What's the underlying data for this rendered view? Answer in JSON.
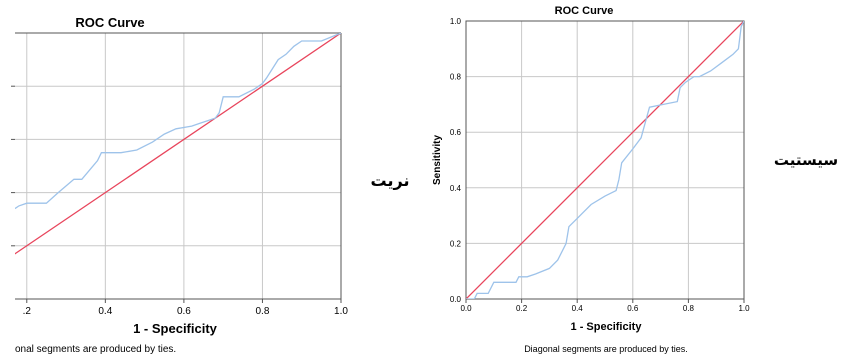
{
  "side_labels": {
    "left": "نریت",
    "right": "سیستیت"
  },
  "chart_data": [
    {
      "type": "line",
      "title": "ROC Curve",
      "xlabel": "1 - Specificity",
      "ylabel": "",
      "footnote": "onal segments are produced by ties.",
      "xlim": [
        0.17,
        1.0
      ],
      "ylim": [
        0.0,
        1.0
      ],
      "x_ticks": [
        0.2,
        0.4,
        0.6,
        0.8,
        1.0
      ],
      "x_tick_labels": [
        ".2",
        "0.4",
        "0.6",
        "0.8",
        "1.0"
      ],
      "grid": true,
      "colors": {
        "roc": "#9ec3ea",
        "diagonal": "#e8455c",
        "grid": "#c8c8c8"
      },
      "series": [
        {
          "values": [
            [
              0.17,
              0.34
            ],
            [
              0.18,
              0.35
            ],
            [
              0.2,
              0.36
            ],
            [
              0.25,
              0.36
            ],
            [
              0.28,
              0.4
            ],
            [
              0.32,
              0.45
            ],
            [
              0.34,
              0.45
            ],
            [
              0.38,
              0.52
            ],
            [
              0.39,
              0.55
            ],
            [
              0.41,
              0.55
            ],
            [
              0.44,
              0.55
            ],
            [
              0.48,
              0.56
            ],
            [
              0.52,
              0.59
            ],
            [
              0.55,
              0.62
            ],
            [
              0.58,
              0.64
            ],
            [
              0.62,
              0.65
            ],
            [
              0.64,
              0.66
            ],
            [
              0.66,
              0.67
            ],
            [
              0.68,
              0.68
            ],
            [
              0.69,
              0.7
            ],
            [
              0.7,
              0.76
            ],
            [
              0.71,
              0.76
            ],
            [
              0.74,
              0.76
            ],
            [
              0.78,
              0.79
            ],
            [
              0.8,
              0.81
            ],
            [
              0.81,
              0.83
            ],
            [
              0.84,
              0.9
            ],
            [
              0.86,
              0.92
            ],
            [
              0.88,
              0.95
            ],
            [
              0.9,
              0.97
            ],
            [
              0.95,
              0.97
            ],
            [
              1.0,
              1.0
            ]
          ]
        },
        {
          "values": [
            [
              0.0,
              0.0
            ],
            [
              1.0,
              1.0
            ]
          ]
        }
      ]
    },
    {
      "type": "line",
      "title": "ROC Curve",
      "xlabel": "1 - Specificity",
      "ylabel": "Sensitivity",
      "footnote": "Diagonal segments are produced by ties.",
      "xlim": [
        0.0,
        1.0
      ],
      "ylim": [
        0.0,
        1.0
      ],
      "x_ticks": [
        0.0,
        0.2,
        0.4,
        0.6,
        0.8,
        1.0
      ],
      "x_tick_labels": [
        "0.0",
        "0.2",
        "0.4",
        "0.6",
        "0.8",
        "1.0"
      ],
      "y_ticks": [
        0.0,
        0.2,
        0.4,
        0.6,
        0.8,
        1.0
      ],
      "y_tick_labels": [
        "0.0",
        "0.2",
        "0.4",
        "0.6",
        "0.8",
        "1.0"
      ],
      "grid": true,
      "colors": {
        "roc": "#9ec3ea",
        "diagonal": "#e8455c",
        "grid": "#c8c8c8"
      },
      "series": [
        {
          "values": [
            [
              0.0,
              0.0
            ],
            [
              0.03,
              0.0
            ],
            [
              0.04,
              0.02
            ],
            [
              0.08,
              0.02
            ],
            [
              0.1,
              0.06
            ],
            [
              0.18,
              0.06
            ],
            [
              0.19,
              0.08
            ],
            [
              0.22,
              0.08
            ],
            [
              0.25,
              0.09
            ],
            [
              0.3,
              0.11
            ],
            [
              0.33,
              0.14
            ],
            [
              0.36,
              0.2
            ],
            [
              0.37,
              0.26
            ],
            [
              0.4,
              0.29
            ],
            [
              0.42,
              0.31
            ],
            [
              0.45,
              0.34
            ],
            [
              0.5,
              0.37
            ],
            [
              0.54,
              0.39
            ],
            [
              0.55,
              0.43
            ],
            [
              0.56,
              0.49
            ],
            [
              0.6,
              0.54
            ],
            [
              0.63,
              0.58
            ],
            [
              0.66,
              0.69
            ],
            [
              0.71,
              0.7
            ],
            [
              0.76,
              0.71
            ],
            [
              0.77,
              0.76
            ],
            [
              0.79,
              0.78
            ],
            [
              0.82,
              0.8
            ],
            [
              0.84,
              0.8
            ],
            [
              0.88,
              0.82
            ],
            [
              0.92,
              0.85
            ],
            [
              0.96,
              0.88
            ],
            [
              0.98,
              0.9
            ],
            [
              0.99,
              0.98
            ],
            [
              1.0,
              1.0
            ]
          ]
        },
        {
          "values": [
            [
              0.0,
              0.0
            ],
            [
              1.0,
              1.0
            ]
          ]
        }
      ]
    }
  ]
}
